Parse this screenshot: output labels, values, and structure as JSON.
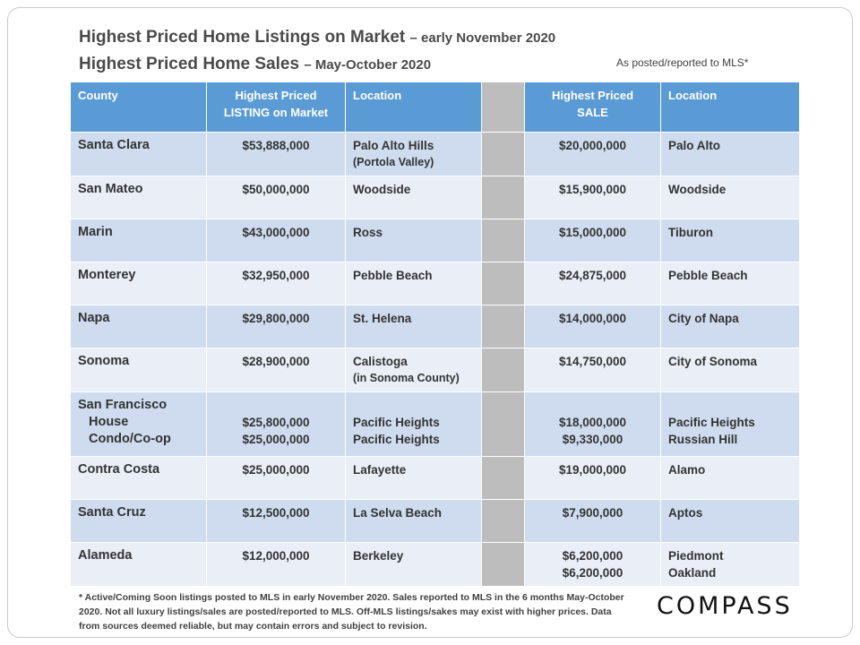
{
  "title": {
    "line1_main": "Highest Priced Home Listings on Market",
    "line1_sub": "– early November 2020",
    "line2_main": "Highest Priced Home Sales",
    "line2_sub": "– May-October 2020",
    "note": "As posted/reported to MLS*"
  },
  "table": {
    "headers": {
      "county": "County",
      "listing_line1": "Highest Priced",
      "listing_line2": "LISTING on Market",
      "listing_location": "Location",
      "sale_line1": "Highest Priced",
      "sale_line2": "SALE",
      "sale_location": "Location"
    },
    "rows": [
      {
        "county": "Santa Clara",
        "listing": "$53,888,000",
        "listing_loc": "Palo Alto Hills",
        "listing_loc_note": "(Portola Valley)",
        "sale": "$20,000,000",
        "sale_loc": "Palo Alto"
      },
      {
        "county": "San Mateo",
        "listing": "$50,000,000",
        "listing_loc": "Woodside",
        "sale": "$15,900,000",
        "sale_loc": "Woodside"
      },
      {
        "county": "Marin",
        "listing": "$43,000,000",
        "listing_loc": "Ross",
        "sale": "$15,000,000",
        "sale_loc": "Tiburon"
      },
      {
        "county": "Monterey",
        "listing": "$32,950,000",
        "listing_loc": "Pebble Beach",
        "sale": "$24,875,000",
        "sale_loc": "Pebble Beach"
      },
      {
        "county": "Napa",
        "listing": "$29,800,000",
        "listing_loc": "St. Helena",
        "sale": "$14,000,000",
        "sale_loc": "City of Napa"
      },
      {
        "county": "Sonoma",
        "listing": "$28,900,000",
        "listing_loc": "Calistoga",
        "listing_loc_note": "(in Sonoma County)",
        "sale": "$14,750,000",
        "sale_loc": "City of Sonoma"
      },
      {
        "county": "San Francisco",
        "county_sub1": "House",
        "county_sub2": "Condo/Co-op",
        "listing": "$25,800,000",
        "listing2": "$25,000,000",
        "listing_loc": "Pacific Heights",
        "listing_loc2": "Pacific Heights",
        "sale": "$18,000,000",
        "sale2": "$9,330,000",
        "sale_loc": "Pacific Heights",
        "sale_loc2": "Russian Hill"
      },
      {
        "county": "Contra Costa",
        "listing": "$25,000,000",
        "listing_loc": "Lafayette",
        "sale": "$19,000,000",
        "sale_loc": "Alamo"
      },
      {
        "county": "Santa Cruz",
        "listing": "$12,500,000",
        "listing_loc": "La Selva Beach",
        "sale": "$7,900,000",
        "sale_loc": "Aptos"
      },
      {
        "county": "Alameda",
        "listing": "$12,000,000",
        "listing_loc": "Berkeley",
        "sale": "$6,200,000",
        "sale2": "$6,200,000",
        "sale_loc": "Piedmont",
        "sale_loc2": "Oakland"
      }
    ]
  },
  "footnote": "* Active/Coming Soon listings posted to MLS in early November 2020. Sales reported to MLS in the 6 months May-October 2020. Not all luxury listings/sales are posted/reported to MLS. Off-MLS listings/sakes may exist with higher prices. Data from sources deemed reliable, but may contain errors and subject to revision.",
  "logo": "COMPASS",
  "colors": {
    "header": "#5b9bd5",
    "row_dark": "#cfdcef",
    "row_light": "#e9eef7",
    "spacer": "#bdbdbd"
  }
}
